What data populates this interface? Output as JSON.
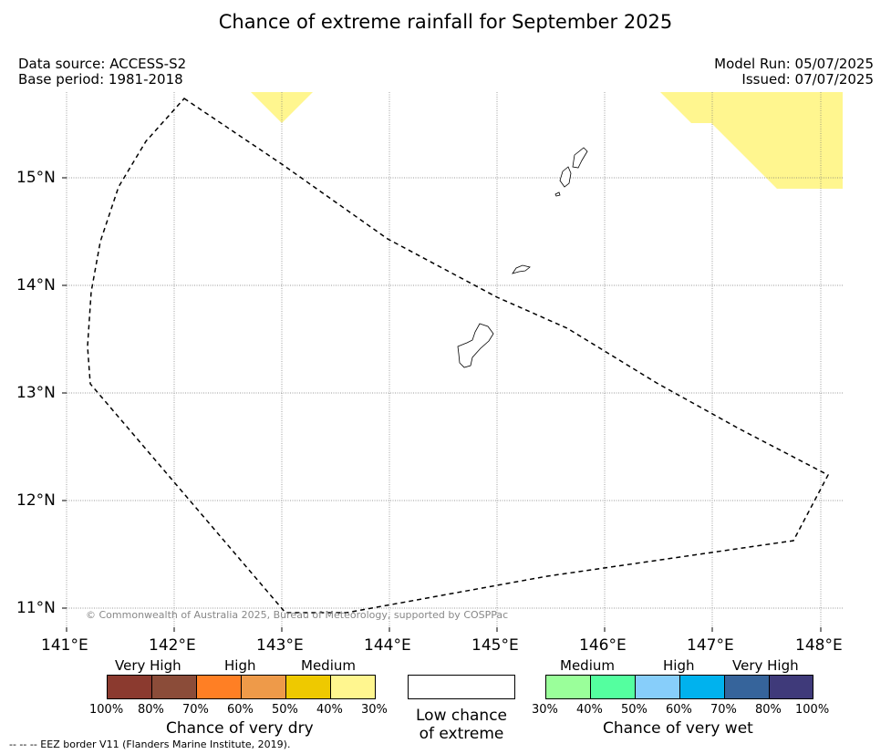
{
  "title": "Chance of extreme rainfall for September 2025",
  "meta": {
    "data_source": "Data source: ACCESS-S2",
    "base_period": "Base period: 1981-2018",
    "model_run": "Model Run: 05/07/2025",
    "issued": "Issued: 07/07/2025"
  },
  "map": {
    "lat_labels": [
      "15°N",
      "14°N",
      "13°N",
      "12°N",
      "11°N"
    ],
    "lon_labels": [
      "141°E",
      "142°E",
      "143°E",
      "144°E",
      "145°E",
      "146°E",
      "147°E",
      "148°E"
    ],
    "copyright": "© Commonwealth of Australia 2025, Bureau of Meteorology, supported by COSPPac",
    "colors": {
      "medium_dry": "#fff68f",
      "eez_line": "#000000",
      "grid": "#777777"
    }
  },
  "legend": {
    "dry": {
      "headings": [
        "Very High",
        "High",
        "Medium"
      ],
      "ticks": [
        "100%",
        "80%",
        "70%",
        "60%",
        "50%",
        "40%",
        "30%"
      ],
      "colors": [
        "#8b3a2f",
        "#8b4c39",
        "#ff7f24",
        "#ee9a49",
        "#eec900",
        "#fff68f"
      ],
      "caption": "Chance of very dry"
    },
    "low": {
      "caption_line1": "Low chance",
      "caption_line2": "of extreme",
      "color": "#ffffff"
    },
    "wet": {
      "headings": [
        "Medium",
        "High",
        "Very High"
      ],
      "ticks": [
        "30%",
        "40%",
        "50%",
        "60%",
        "70%",
        "80%",
        "100%"
      ],
      "colors": [
        "#9aff9a",
        "#54ff9f",
        "#87cefa",
        "#00b2ee",
        "#36649b",
        "#3f3a7a"
      ],
      "caption": "Chance of very wet"
    }
  },
  "footnote": "--  --  -- EEZ border V11 (Flanders Marine Institute, 2019)."
}
